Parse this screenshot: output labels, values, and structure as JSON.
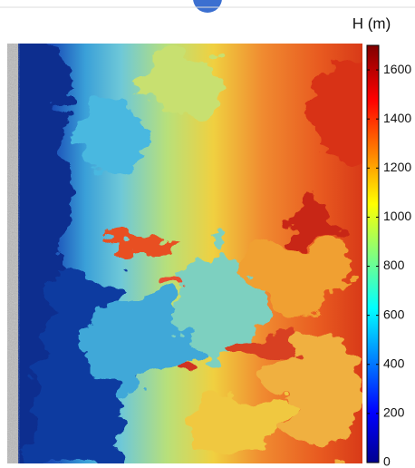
{
  "colorbar": {
    "label": "H (m)",
    "range": [
      0,
      1700
    ],
    "ticks": [
      0,
      200,
      400,
      600,
      800,
      1000,
      1200,
      1400,
      1600
    ]
  }
}
